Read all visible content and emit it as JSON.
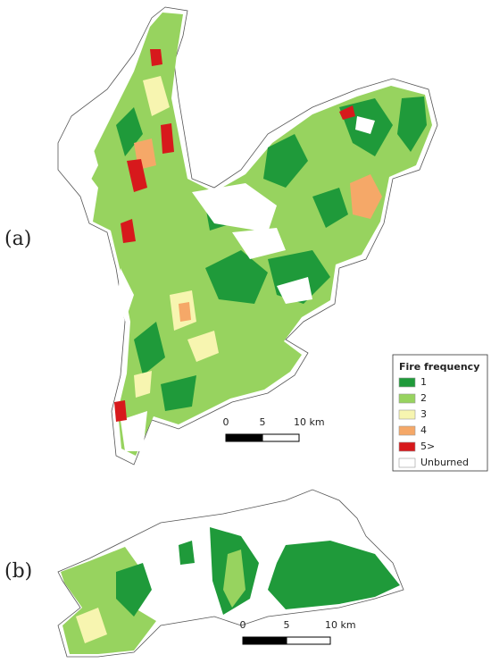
{
  "panels": [
    {
      "label": "(a)",
      "scale_bar": [
        "0",
        "5",
        "10 km"
      ]
    },
    {
      "label": "(b)",
      "scale_bar": [
        "0",
        "5",
        "10 km"
      ]
    }
  ],
  "legend": {
    "title": "Fire frequency",
    "items": [
      {
        "label": "1",
        "color": "#1f9a3a"
      },
      {
        "label": "2",
        "color": "#97d35f"
      },
      {
        "label": "3",
        "color": "#f7f5b0"
      },
      {
        "label": "4",
        "color": "#f5a868"
      },
      {
        "label": "5>",
        "color": "#d7191c"
      },
      {
        "label": "Unburned",
        "color": "#ffffff"
      }
    ]
  }
}
